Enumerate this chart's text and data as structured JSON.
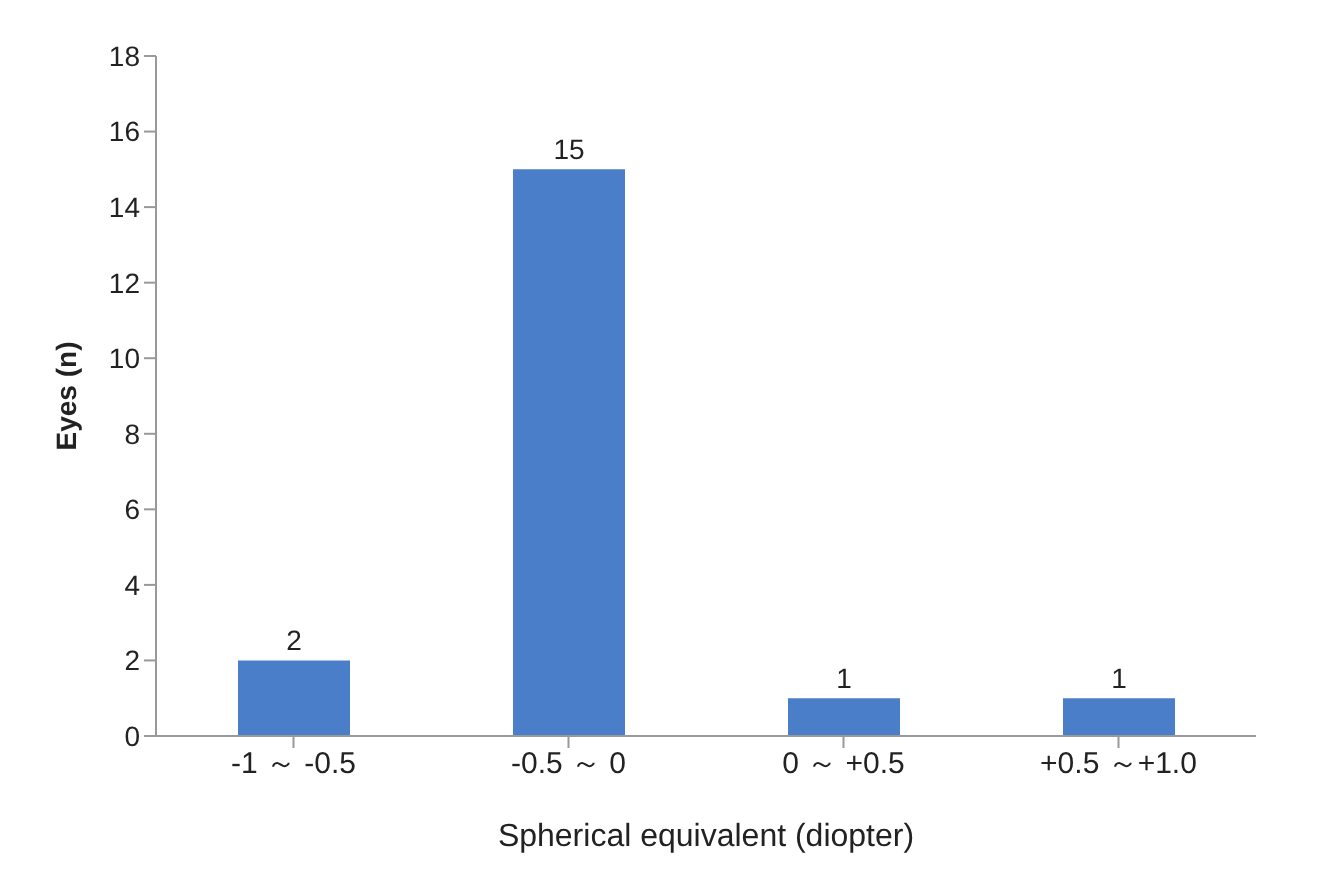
{
  "chart_data": {
    "type": "bar",
    "xlabel": "Spherical equivalent (diopter)",
    "ylabel": "Eyes (n)",
    "categories": [
      "-1 ～ -0.5",
      "-0.5 ～ 0",
      "0 ～ +0.5",
      "+0.5 ～+1.0"
    ],
    "values": [
      2,
      15,
      1,
      1
    ],
    "color": "#4a7ec9",
    "ylim": [
      0,
      18
    ],
    "yticks": [
      0,
      2,
      4,
      6,
      8,
      10,
      12,
      14,
      16,
      18
    ],
    "data_labels": true
  }
}
